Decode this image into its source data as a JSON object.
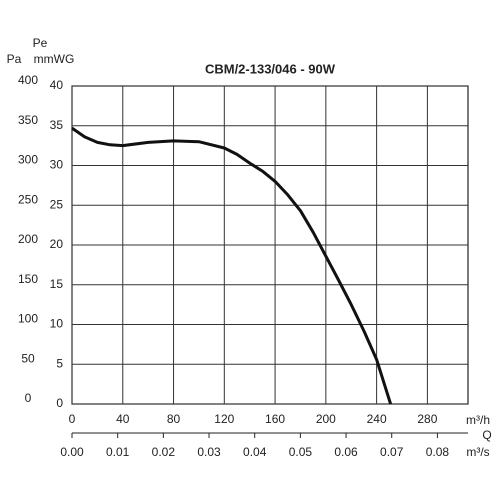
{
  "chart_data": {
    "type": "line",
    "title": "CBM/2-133/046 - 90W",
    "y_label": "Pa",
    "y2_label_top": "Pe",
    "y2_label": "mmWG",
    "x_label": "m³/h",
    "x_label_main": "Q",
    "x2_label": "m³/s",
    "x": [
      0,
      10,
      20,
      30,
      40,
      60,
      80,
      100,
      120,
      130,
      140,
      150,
      160,
      170,
      180,
      190,
      200,
      210,
      220,
      230,
      240,
      251
    ],
    "series": [
      {
        "color": "#111111",
        "axis": "y2",
        "values": [
          34.7,
          33.6,
          32.9,
          32.6,
          32.5,
          32.9,
          33.1,
          33.0,
          32.2,
          31.4,
          30.3,
          29.3,
          28.0,
          26.3,
          24.3,
          21.6,
          18.6,
          15.6,
          12.5,
          9.2,
          5.6,
          0
        ]
      }
    ],
    "xlim": [
      0,
      312
    ],
    "xticks": [
      0,
      40,
      80,
      120,
      160,
      200,
      240,
      280
    ],
    "x2lim": [
      0,
      0.0867
    ],
    "x2ticks": [
      {
        "value": 0,
        "label": "0.00"
      },
      0.01,
      0.02,
      0.03,
      0.04,
      0.05,
      0.06,
      0.07,
      0.08
    ],
    "ylim": [
      0,
      400
    ],
    "yticks": [
      0,
      50,
      100,
      150,
      200,
      250,
      300,
      350,
      400
    ],
    "y2lim": [
      0,
      40
    ],
    "y2ticks": [
      0,
      5,
      10,
      15,
      20,
      25,
      30,
      35,
      40
    ],
    "grid": true
  }
}
